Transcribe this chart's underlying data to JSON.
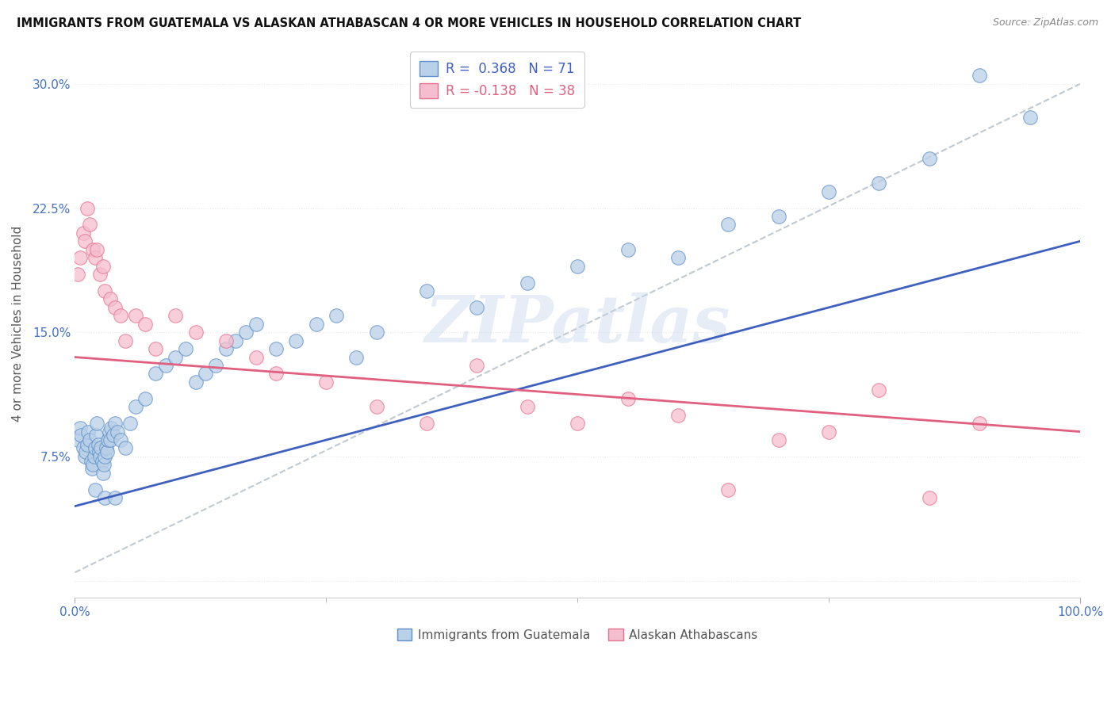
{
  "title": "IMMIGRANTS FROM GUATEMALA VS ALASKAN ATHABASCAN 4 OR MORE VEHICLES IN HOUSEHOLD CORRELATION CHART",
  "source": "Source: ZipAtlas.com",
  "ylabel": "4 or more Vehicles in Household",
  "xlim": [
    0,
    100
  ],
  "ylim": [
    -1,
    32
  ],
  "yticks": [
    0,
    7.5,
    15.0,
    22.5,
    30.0
  ],
  "ytick_labels": [
    "",
    "7.5%",
    "15.0%",
    "22.5%",
    "30.0%"
  ],
  "xtick_labels": [
    "0.0%",
    "100.0%"
  ],
  "legend_r1": "R =  0.368",
  "legend_n1": "N = 71",
  "legend_r2": "R = -0.138",
  "legend_n2": "N = 38",
  "blue_fill": "#b8d0e8",
  "pink_fill": "#f5bece",
  "blue_edge": "#6090c8",
  "pink_edge": "#e87090",
  "blue_line": "#4060c0",
  "pink_line": "#e06080",
  "dashed_color": "#c0c8d0",
  "watermark": "ZIPatlas",
  "bg": "#ffffff",
  "grid_color": "#e8e8e8",
  "blue_scatter_x": [
    0.3,
    0.5,
    0.6,
    0.8,
    1.0,
    1.1,
    1.2,
    1.3,
    1.5,
    1.6,
    1.7,
    1.8,
    1.9,
    2.0,
    2.1,
    2.2,
    2.3,
    2.4,
    2.5,
    2.6,
    2.7,
    2.8,
    2.9,
    3.0,
    3.1,
    3.2,
    3.3,
    3.4,
    3.5,
    3.6,
    3.8,
    4.0,
    4.2,
    4.5,
    5.0,
    5.5,
    6.0,
    7.0,
    8.0,
    9.0,
    10.0,
    11.0,
    12.0,
    13.0,
    14.0,
    15.0,
    16.0,
    17.0,
    18.0,
    20.0,
    22.0,
    24.0,
    26.0,
    28.0,
    30.0,
    35.0,
    40.0,
    45.0,
    50.0,
    55.0,
    60.0,
    65.0,
    70.0,
    75.0,
    80.0,
    85.0,
    90.0,
    95.0,
    2.0,
    3.0,
    4.0
  ],
  "blue_scatter_y": [
    8.5,
    9.2,
    8.8,
    8.0,
    7.5,
    7.8,
    8.2,
    9.0,
    8.5,
    7.2,
    6.8,
    7.0,
    7.5,
    8.0,
    8.8,
    9.5,
    8.2,
    7.8,
    7.5,
    8.0,
    7.2,
    6.5,
    7.0,
    7.5,
    8.0,
    7.8,
    8.5,
    9.0,
    8.5,
    9.2,
    8.8,
    9.5,
    9.0,
    8.5,
    8.0,
    9.5,
    10.5,
    11.0,
    12.5,
    13.0,
    13.5,
    14.0,
    12.0,
    12.5,
    13.0,
    14.0,
    14.5,
    15.0,
    15.5,
    14.0,
    14.5,
    15.5,
    16.0,
    13.5,
    15.0,
    17.5,
    16.5,
    18.0,
    19.0,
    20.0,
    19.5,
    21.5,
    22.0,
    23.5,
    24.0,
    25.5,
    30.5,
    28.0,
    5.5,
    5.0,
    5.0
  ],
  "pink_scatter_x": [
    0.3,
    0.5,
    0.8,
    1.0,
    1.2,
    1.5,
    1.8,
    2.0,
    2.2,
    2.5,
    2.8,
    3.0,
    3.5,
    4.0,
    4.5,
    5.0,
    6.0,
    7.0,
    8.0,
    10.0,
    12.0,
    15.0,
    18.0,
    20.0,
    25.0,
    30.0,
    35.0,
    40.0,
    45.0,
    50.0,
    55.0,
    60.0,
    65.0,
    70.0,
    75.0,
    80.0,
    85.0,
    90.0
  ],
  "pink_scatter_y": [
    18.5,
    19.5,
    21.0,
    20.5,
    22.5,
    21.5,
    20.0,
    19.5,
    20.0,
    18.5,
    19.0,
    17.5,
    17.0,
    16.5,
    16.0,
    14.5,
    16.0,
    15.5,
    14.0,
    16.0,
    15.0,
    14.5,
    13.5,
    12.5,
    12.0,
    10.5,
    9.5,
    13.0,
    10.5,
    9.5,
    11.0,
    10.0,
    5.5,
    8.5,
    9.0,
    11.5,
    5.0,
    9.5
  ],
  "blue_trend": [
    0,
    100,
    4.5,
    20.5
  ],
  "pink_trend": [
    0,
    100,
    13.5,
    9.0
  ],
  "dashed_trend": [
    0,
    100,
    0.5,
    30.0
  ]
}
